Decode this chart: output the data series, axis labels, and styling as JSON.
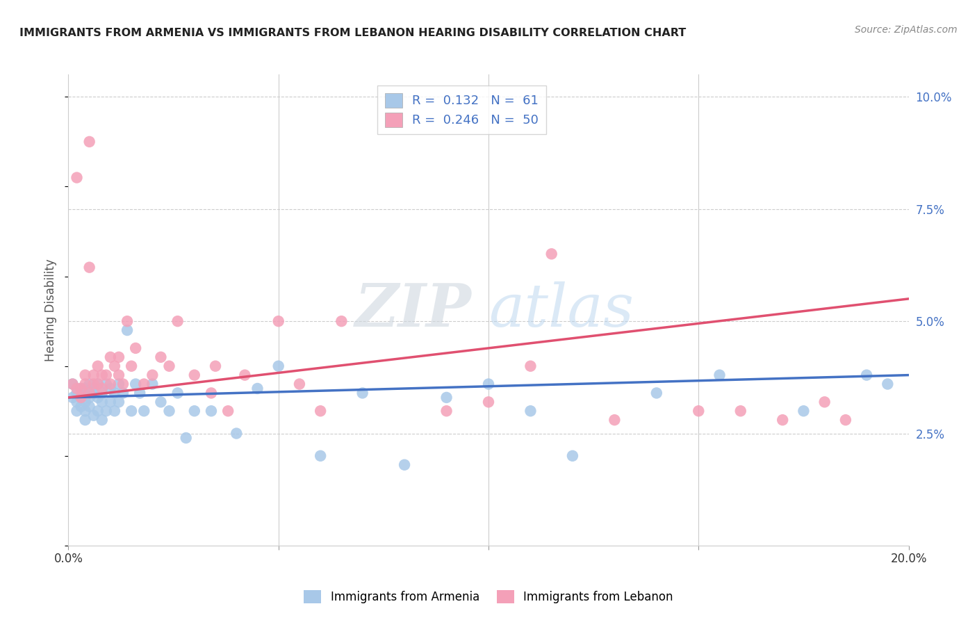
{
  "title": "IMMIGRANTS FROM ARMENIA VS IMMIGRANTS FROM LEBANON HEARING DISABILITY CORRELATION CHART",
  "source": "Source: ZipAtlas.com",
  "ylabel": "Hearing Disability",
  "armenia_R": "0.132",
  "armenia_N": "61",
  "lebanon_R": "0.246",
  "lebanon_N": "50",
  "armenia_color": "#a8c8e8",
  "lebanon_color": "#f4a0b8",
  "armenia_line_color": "#4472c4",
  "lebanon_line_color": "#e05070",
  "xlim": [
    0.0,
    0.2
  ],
  "ylim": [
    0.0,
    0.105
  ],
  "watermark_text": "ZIPatlas",
  "background_color": "#ffffff",
  "grid_color": "#cccccc",
  "armenia_x": [
    0.001,
    0.001,
    0.002,
    0.002,
    0.002,
    0.003,
    0.003,
    0.003,
    0.004,
    0.004,
    0.004,
    0.004,
    0.005,
    0.005,
    0.005,
    0.005,
    0.006,
    0.006,
    0.006,
    0.007,
    0.007,
    0.007,
    0.008,
    0.008,
    0.008,
    0.009,
    0.009,
    0.01,
    0.01,
    0.011,
    0.011,
    0.012,
    0.012,
    0.013,
    0.014,
    0.015,
    0.016,
    0.017,
    0.018,
    0.02,
    0.022,
    0.024,
    0.026,
    0.028,
    0.03,
    0.034,
    0.04,
    0.045,
    0.05,
    0.06,
    0.07,
    0.08,
    0.09,
    0.1,
    0.11,
    0.12,
    0.14,
    0.155,
    0.175,
    0.19,
    0.195
  ],
  "armenia_y": [
    0.036,
    0.033,
    0.03,
    0.034,
    0.032,
    0.035,
    0.031,
    0.033,
    0.028,
    0.035,
    0.032,
    0.03,
    0.034,
    0.031,
    0.033,
    0.036,
    0.029,
    0.034,
    0.035,
    0.03,
    0.033,
    0.036,
    0.028,
    0.034,
    0.032,
    0.036,
    0.03,
    0.035,
    0.032,
    0.034,
    0.03,
    0.036,
    0.032,
    0.034,
    0.048,
    0.03,
    0.036,
    0.034,
    0.03,
    0.036,
    0.032,
    0.03,
    0.034,
    0.024,
    0.03,
    0.03,
    0.025,
    0.035,
    0.04,
    0.02,
    0.034,
    0.018,
    0.033,
    0.036,
    0.03,
    0.02,
    0.034,
    0.038,
    0.03,
    0.038,
    0.036
  ],
  "lebanon_x": [
    0.001,
    0.002,
    0.002,
    0.003,
    0.003,
    0.004,
    0.004,
    0.005,
    0.005,
    0.006,
    0.006,
    0.007,
    0.007,
    0.008,
    0.008,
    0.009,
    0.01,
    0.01,
    0.011,
    0.012,
    0.012,
    0.013,
    0.014,
    0.015,
    0.016,
    0.018,
    0.02,
    0.022,
    0.024,
    0.026,
    0.03,
    0.034,
    0.038,
    0.042,
    0.05,
    0.055,
    0.065,
    0.09,
    0.1,
    0.11,
    0.115,
    0.13,
    0.15,
    0.16,
    0.17,
    0.18,
    0.185,
    0.005,
    0.035,
    0.06
  ],
  "lebanon_y": [
    0.036,
    0.082,
    0.035,
    0.033,
    0.035,
    0.036,
    0.038,
    0.09,
    0.034,
    0.038,
    0.036,
    0.036,
    0.04,
    0.038,
    0.035,
    0.038,
    0.042,
    0.036,
    0.04,
    0.038,
    0.042,
    0.036,
    0.05,
    0.04,
    0.044,
    0.036,
    0.038,
    0.042,
    0.04,
    0.05,
    0.038,
    0.034,
    0.03,
    0.038,
    0.05,
    0.036,
    0.05,
    0.03,
    0.032,
    0.04,
    0.065,
    0.028,
    0.03,
    0.03,
    0.028,
    0.032,
    0.028,
    0.062,
    0.04,
    0.03
  ]
}
